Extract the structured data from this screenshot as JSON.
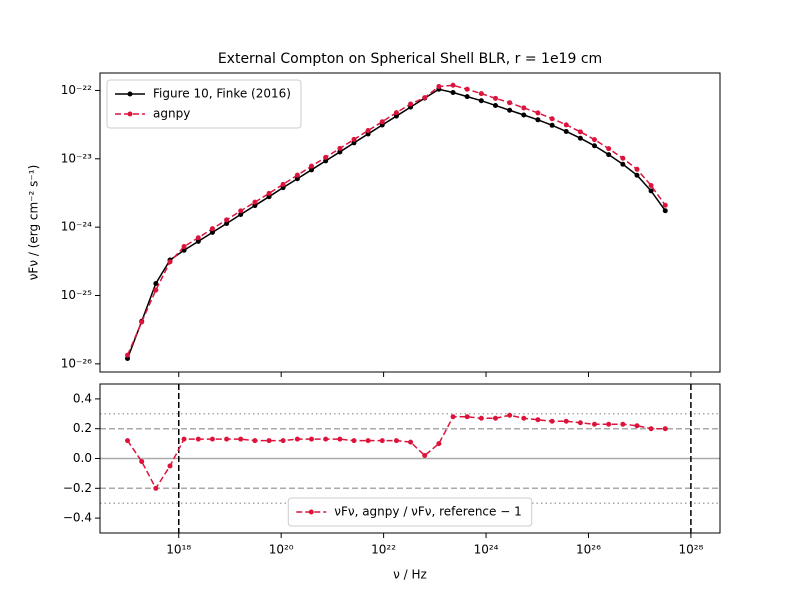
{
  "chart_data": [
    {
      "type": "line",
      "title": "External Compton on Spherical Shell BLR, r = 1e19 cm",
      "ylabel": "νFν / (erg cm⁻² s⁻¹)",
      "xscale": "log",
      "yscale": "log",
      "xlim": [
        2.9e+16,
        3.7e+28
      ],
      "ylim": [
        7.6e-27,
        1.8e-22
      ],
      "xticks": [
        1e+18,
        1e+20,
        1e+22,
        1e+24,
        1e+26,
        1e+28
      ],
      "yticks": [
        {
          "value": 1e-26,
          "label": "10⁻²⁶"
        },
        {
          "value": 1e-25,
          "label": "10⁻²⁵"
        },
        {
          "value": 1e-24,
          "label": "10⁻²⁴"
        },
        {
          "value": 1e-23,
          "label": "10⁻²³"
        },
        {
          "value": 1e-22,
          "label": "10⁻²²"
        }
      ],
      "legend": "upper left",
      "x": [
        1e+17,
        1.89e+17,
        3.57e+17,
        6.75e+17,
        1.27e+18,
        2.41e+18,
        4.55e+18,
        8.6e+18,
        1.62e+19,
        3.07e+19,
        5.8e+19,
        1.09e+20,
        2.07e+20,
        3.91e+20,
        7.39e+20,
        1.4e+21,
        2.64e+21,
        4.98e+21,
        9.41e+21,
        1.78e+22,
        3.36e+22,
        6.35e+22,
        1.2e+23,
        2.27e+23,
        4.28e+23,
        8.09e+23,
        1.53e+24,
        2.89e+24,
        5.46e+24,
        1.03e+25,
        1.95e+25,
        3.68e+25,
        6.95e+25,
        1.31e+26,
        2.48e+26,
        4.69e+26,
        8.86e+26,
        1.67e+27,
        3.16e+27
      ],
      "series": [
        {
          "name": "Figure 10, Finke (2016)",
          "color": "#000000",
          "linestyle": "solid",
          "values": [
            1.2e-26,
            4.2e-26,
            1.5e-25,
            3.3e-25,
            4.6e-25,
            6.2e-25,
            8.4e-25,
            1.13e-24,
            1.53e-24,
            2.07e-24,
            2.79e-24,
            3.78e-24,
            5.1e-24,
            6.9e-24,
            9.33e-24,
            1.26e-23,
            1.71e-23,
            2.31e-23,
            3.12e-23,
            4.22e-23,
            5.7e-23,
            7.71e-23,
            1.04e-22,
            9.33e-23,
            8.13e-23,
            7.08e-23,
            6.03e-23,
            5.13e-23,
            4.37e-23,
            3.72e-23,
            3.09e-23,
            2.51e-23,
            2e-23,
            1.55e-23,
            1.15e-23,
            8.32e-24,
            5.75e-24,
            3.39e-24,
            1.74e-24
          ]
        },
        {
          "name": "agnpy",
          "color": "#dc143c",
          "linestyle": "dashed",
          "values": [
            1.34e-26,
            4.1e-26,
            1.2e-25,
            3.1e-25,
            5.2e-25,
            7e-25,
            9.5e-25,
            1.28e-24,
            1.73e-24,
            2.32e-24,
            3.12e-24,
            4.23e-24,
            5.76e-24,
            7.8e-24,
            1.05e-23,
            1.42e-23,
            1.92e-23,
            2.59e-23,
            3.49e-23,
            4.73e-23,
            6.33e-23,
            7.86e-23,
            1.14e-22,
            1.19e-22,
            1.04e-22,
            8.99e-23,
            7.66e-23,
            6.62e-23,
            5.55e-23,
            4.69e-23,
            3.86e-23,
            3.14e-23,
            2.48e-23,
            1.91e-23,
            1.41e-23,
            1.02e-23,
            7.02e-24,
            4.07e-24,
            2.09e-24
          ]
        }
      ]
    },
    {
      "type": "line",
      "xlabel": "ν / Hz",
      "xscale": "log",
      "yscale": "linear",
      "xlim": [
        2.9e+16,
        3.7e+28
      ],
      "ylim": [
        -0.5,
        0.5
      ],
      "xticks": [
        {
          "value": 1e+18,
          "label": "10¹⁸"
        },
        {
          "value": 1e+20,
          "label": "10²⁰"
        },
        {
          "value": 1e+22,
          "label": "10²²"
        },
        {
          "value": 1e+24,
          "label": "10²⁴"
        },
        {
          "value": 1e+26,
          "label": "10²⁶"
        },
        {
          "value": 1e+28,
          "label": "10²⁸"
        }
      ],
      "yticks": [
        {
          "value": -0.4,
          "label": "−0.4"
        },
        {
          "value": -0.2,
          "label": "−0.2"
        },
        {
          "value": 0,
          "label": "0.0"
        },
        0.2,
        0.4
      ],
      "legend": "lower center",
      "hlines": [
        {
          "y": 0,
          "style": "solid",
          "color": "#aaaaaa"
        },
        {
          "y": 0.2,
          "style": "dashed",
          "color": "#aaaaaa"
        },
        {
          "y": -0.2,
          "style": "dashed",
          "color": "#aaaaaa"
        },
        {
          "y": 0.3,
          "style": "dotted",
          "color": "#aaaaaa"
        },
        {
          "y": -0.3,
          "style": "dotted",
          "color": "#aaaaaa"
        }
      ],
      "vlines": [
        {
          "x": 1e+18,
          "style": "dashed",
          "color": "#000000"
        },
        {
          "x": 1e+28,
          "style": "dashed",
          "color": "#000000"
        }
      ],
      "x": [
        1e+17,
        1.89e+17,
        3.57e+17,
        6.75e+17,
        1.27e+18,
        2.41e+18,
        4.55e+18,
        8.6e+18,
        1.62e+19,
        3.07e+19,
        5.8e+19,
        1.09e+20,
        2.07e+20,
        3.91e+20,
        7.39e+20,
        1.4e+21,
        2.64e+21,
        4.98e+21,
        9.41e+21,
        1.78e+22,
        3.36e+22,
        6.35e+22,
        1.2e+23,
        2.27e+23,
        4.28e+23,
        8.09e+23,
        1.53e+24,
        2.89e+24,
        5.46e+24,
        1.03e+25,
        1.95e+25,
        3.68e+25,
        6.95e+25,
        1.31e+26,
        2.48e+26,
        4.69e+26,
        8.86e+26,
        1.67e+27,
        3.16e+27
      ],
      "series": [
        {
          "name": "νFν, agnpy / νFν, reference − 1",
          "color": "#dc143c",
          "linestyle": "dashed",
          "values": [
            0.12,
            -0.02,
            -0.2,
            -0.05,
            0.13,
            0.13,
            0.13,
            0.13,
            0.13,
            0.12,
            0.12,
            0.12,
            0.13,
            0.13,
            0.13,
            0.13,
            0.12,
            0.12,
            0.12,
            0.12,
            0.11,
            0.02,
            0.1,
            0.28,
            0.28,
            0.27,
            0.27,
            0.29,
            0.27,
            0.26,
            0.25,
            0.25,
            0.24,
            0.23,
            0.23,
            0.23,
            0.22,
            0.2,
            0.2
          ]
        }
      ]
    }
  ]
}
